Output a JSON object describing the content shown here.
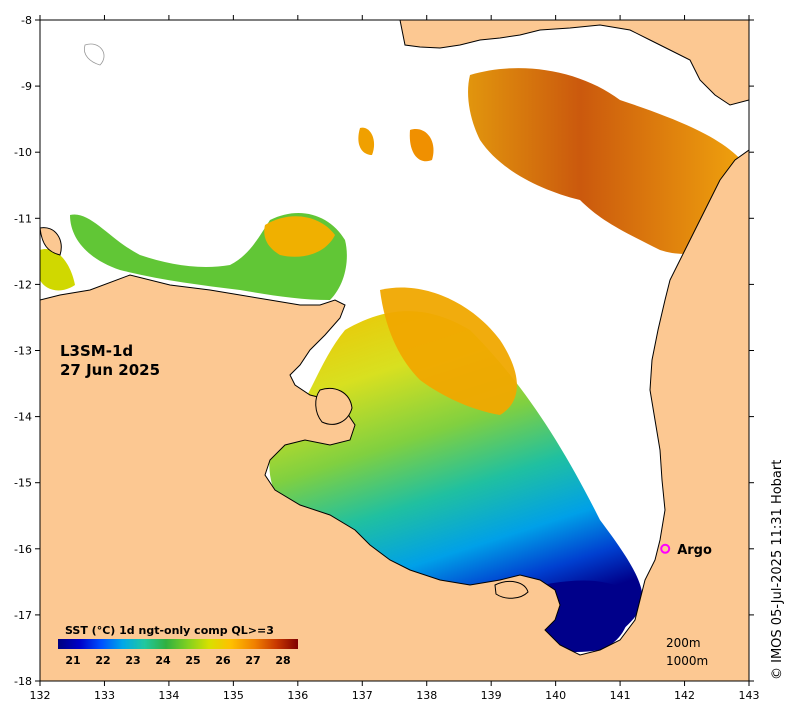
{
  "map": {
    "title_line1": "L3SM-1d",
    "title_line2": "27 Jun 2025",
    "credit": "© IMOS 05-Jul-2025 11:31 Hobart",
    "lon_ticks": [
      "132",
      "133",
      "134",
      "135",
      "136",
      "137",
      "138",
      "139",
      "140",
      "141",
      "142",
      "143"
    ],
    "lat_ticks": [
      "-8",
      "-9",
      "-10",
      "-11",
      "-12",
      "-13",
      "-14",
      "-15",
      "-16",
      "-17",
      "-18"
    ],
    "legend": {
      "title": "SST (°C) 1d ngt-only comp QL>=3",
      "ticks": [
        "21",
        "22",
        "23",
        "24",
        "25",
        "26",
        "27",
        "28"
      ],
      "colors": [
        "#00007f",
        "#0000c8",
        "#0050ff",
        "#00a8e8",
        "#20c8a0",
        "#30b040",
        "#80d020",
        "#d8e000",
        "#ffc000",
        "#f08000",
        "#c83800",
        "#800000"
      ]
    },
    "contours": {
      "shallow": "200m",
      "deep": "1000m"
    },
    "marker": {
      "label": "Argo",
      "lon": 141.7,
      "lat": -16.0,
      "color": "#ff00ff"
    },
    "colors": {
      "land": "#fcc892",
      "ocean_nodata": "#ffffff",
      "coast": "#000000"
    }
  }
}
